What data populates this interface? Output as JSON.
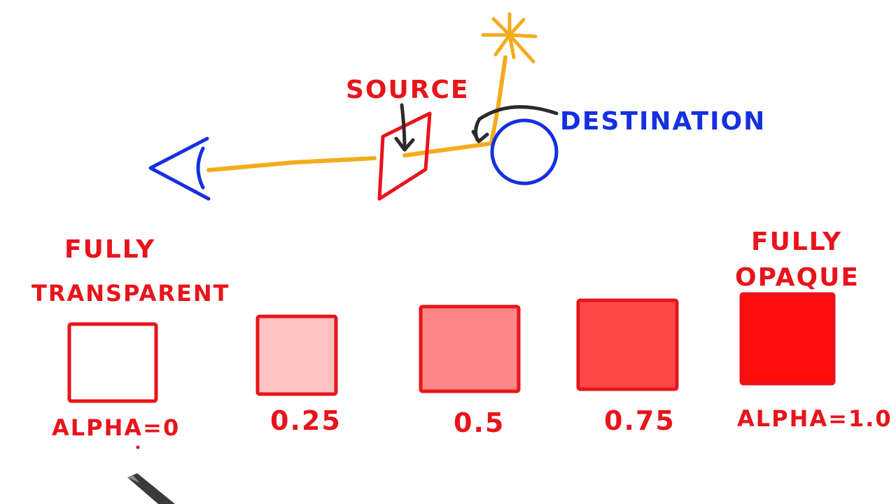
{
  "labels": {
    "source": "SOURCE",
    "destination": "DESTINATION",
    "fully_transparent_line1": "FULLY",
    "fully_transparent_line2": "TRANSPARENT",
    "fully_opaque_line1": "FULLY",
    "fully_opaque_line2": "OPAQUE"
  },
  "alpha_swatches": [
    {
      "label": "ALPHA=0",
      "alpha": 0
    },
    {
      "label": "0.25",
      "alpha": 0.25
    },
    {
      "label": "0.5",
      "alpha": 0.5
    },
    {
      "label": "0.75",
      "alpha": 0.75
    },
    {
      "label": "ALPHA=1.0",
      "alpha": 1.0
    }
  ],
  "colors": {
    "ink_red": "#e8141b",
    "ink_blue": "#1530e0",
    "ink_orange": "#f4ab1b",
    "ink_dark": "#2b2b2b",
    "swatch_red": "#ff0000"
  },
  "icons": [
    "eye-icon",
    "sun-icon",
    "pen-icon"
  ]
}
